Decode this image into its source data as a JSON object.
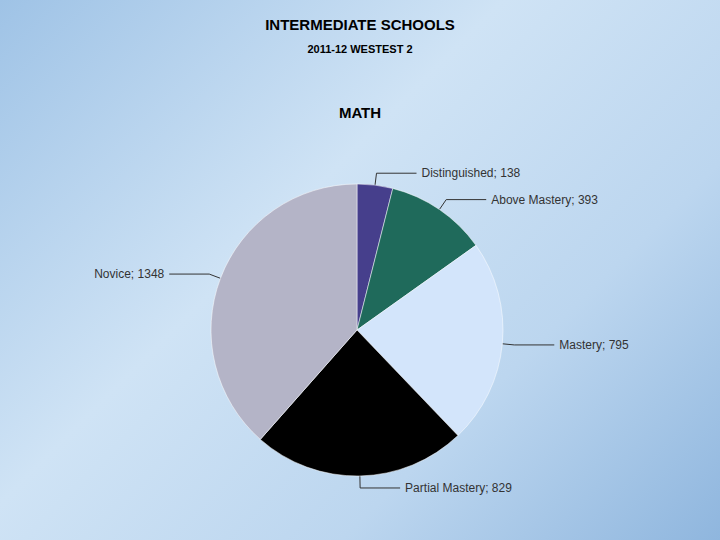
{
  "header": {
    "title": "INTERMEDIATE SCHOOLS",
    "subtitle": "2011-12 WESTEST 2"
  },
  "chart_data": {
    "type": "pie",
    "title": "MATH",
    "categories": [
      "Distinguished",
      "Above Mastery",
      "Mastery",
      "Partial Mastery",
      "Novice"
    ],
    "values": [
      138,
      393,
      795,
      829,
      1348
    ],
    "value_labels": [
      "Distinguished; 138",
      "Above Mastery; 393",
      "Mastery; 795",
      "Partial Mastery; 829",
      "Novice; 1348"
    ],
    "colors": [
      "#463f8c",
      "#1f6a5b",
      "#d3e5fb",
      "#000000",
      "#b4b4c7"
    ],
    "data_labels": true
  }
}
